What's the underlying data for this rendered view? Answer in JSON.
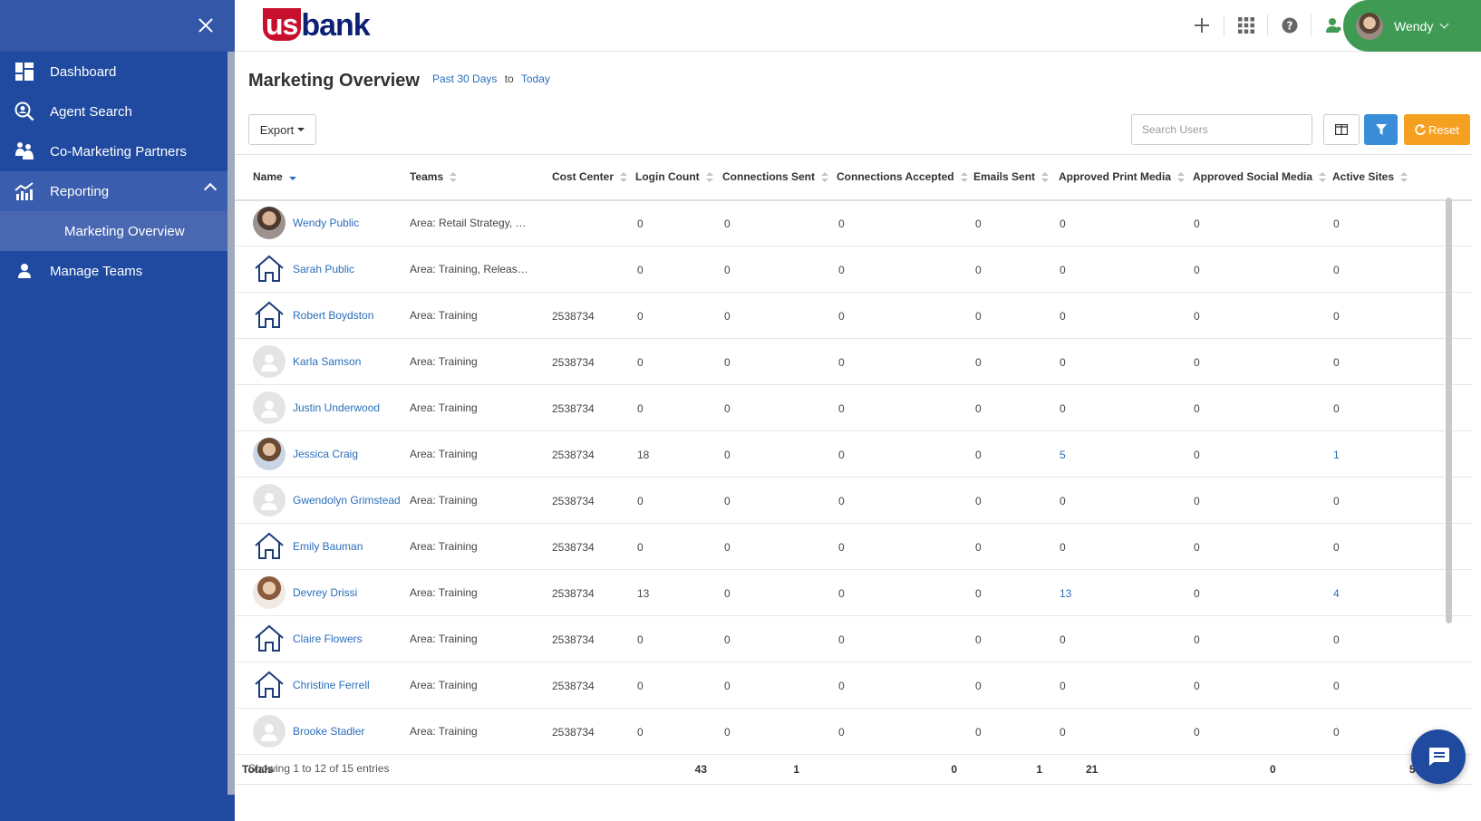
{
  "sidebar": {
    "items": [
      {
        "label": "Dashboard",
        "icon": "dashboard-icon"
      },
      {
        "label": "Agent Search",
        "icon": "agent-search-icon"
      },
      {
        "label": "Co-Marketing Partners",
        "icon": "partners-icon"
      },
      {
        "label": "Reporting",
        "icon": "reporting-icon"
      },
      {
        "label": "Marketing Overview"
      },
      {
        "label": "Manage Teams",
        "icon": "person-icon"
      }
    ]
  },
  "header": {
    "logo_us": "us",
    "logo_bank": "bank",
    "user_name": "Wendy"
  },
  "page": {
    "title": "Marketing Overview",
    "date_from": "Past 30 Days",
    "date_to_word": "to",
    "date_to": "Today"
  },
  "toolbar": {
    "export_label": "Export",
    "search_placeholder": "Search Users",
    "reset_label": "Reset"
  },
  "table": {
    "columns": [
      "Name",
      "Teams",
      "Cost Center",
      "Login Count",
      "Connections Sent",
      "Connections Accepted",
      "Emails Sent",
      "Approved Print Media",
      "Approved Social Media",
      "Active Sites"
    ],
    "rows": [
      {
        "name": "Wendy Public",
        "avatar": "photo-a",
        "team": "Area: Retail Strategy, …",
        "cost": "",
        "login": "0",
        "sent": "0",
        "accepted": "0",
        "emails": "0",
        "print": "0",
        "social": "0",
        "sites": "0"
      },
      {
        "name": "Sarah Public",
        "avatar": "house",
        "team": "Area: Training, Releas…",
        "cost": "",
        "login": "0",
        "sent": "0",
        "accepted": "0",
        "emails": "0",
        "print": "0",
        "social": "0",
        "sites": "0"
      },
      {
        "name": "Robert Boydston",
        "avatar": "house",
        "team": "Area: Training",
        "cost": "2538734",
        "login": "0",
        "sent": "0",
        "accepted": "0",
        "emails": "0",
        "print": "0",
        "social": "0",
        "sites": "0"
      },
      {
        "name": "Karla Samson",
        "avatar": "silhouette",
        "team": "Area: Training",
        "cost": "2538734",
        "login": "0",
        "sent": "0",
        "accepted": "0",
        "emails": "0",
        "print": "0",
        "social": "0",
        "sites": "0"
      },
      {
        "name": "Justin Underwood",
        "avatar": "silhouette",
        "team": "Area: Training",
        "cost": "2538734",
        "login": "0",
        "sent": "0",
        "accepted": "0",
        "emails": "0",
        "print": "0",
        "social": "0",
        "sites": "0"
      },
      {
        "name": "Jessica Craig",
        "avatar": "photo-b",
        "team": "Area: Training",
        "cost": "2538734",
        "login": "18",
        "sent": "0",
        "accepted": "0",
        "emails": "0",
        "print": "5",
        "social": "0",
        "sites": "1"
      },
      {
        "name": "Gwendolyn Grimstead",
        "avatar": "silhouette",
        "team": "Area: Training",
        "cost": "2538734",
        "login": "0",
        "sent": "0",
        "accepted": "0",
        "emails": "0",
        "print": "0",
        "social": "0",
        "sites": "0"
      },
      {
        "name": "Emily Bauman",
        "avatar": "house",
        "team": "Area: Training",
        "cost": "2538734",
        "login": "0",
        "sent": "0",
        "accepted": "0",
        "emails": "0",
        "print": "0",
        "social": "0",
        "sites": "0"
      },
      {
        "name": "Devrey Drissi",
        "avatar": "photo-c",
        "team": "Area: Training",
        "cost": "2538734",
        "login": "13",
        "sent": "0",
        "accepted": "0",
        "emails": "0",
        "print": "13",
        "social": "0",
        "sites": "4"
      },
      {
        "name": "Claire Flowers",
        "avatar": "house",
        "team": "Area: Training",
        "cost": "2538734",
        "login": "0",
        "sent": "0",
        "accepted": "0",
        "emails": "0",
        "print": "0",
        "social": "0",
        "sites": "0"
      },
      {
        "name": "Christine Ferrell",
        "avatar": "house",
        "team": "Area: Training",
        "cost": "2538734",
        "login": "0",
        "sent": "0",
        "accepted": "0",
        "emails": "0",
        "print": "0",
        "social": "0",
        "sites": "0"
      },
      {
        "name": "Brooke Stadler",
        "avatar": "silhouette",
        "team": "Area: Training",
        "cost": "2538734",
        "login": "0",
        "sent": "0",
        "accepted": "0",
        "emails": "0",
        "print": "0",
        "social": "0",
        "sites": "0"
      }
    ],
    "totals": {
      "label": "Totals",
      "login": "43",
      "sent": "1",
      "accepted": "0",
      "emails": "1",
      "print": "21",
      "social": "0",
      "sites": "5"
    }
  },
  "footer": {
    "info": "Showing 1 to 12 of 15 entries"
  },
  "colors": {
    "sidebar": "#1f4aa0",
    "link": "#2a6ebb",
    "user_pill": "#3f9b54",
    "filter": "#3a8ed8",
    "reset": "#f5a021"
  }
}
